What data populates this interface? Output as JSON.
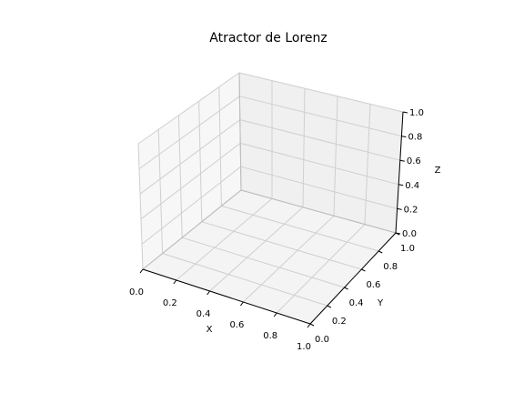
{
  "chart_data": {
    "type": "line",
    "title": "Atractor de Lorenz",
    "xlabel": "X",
    "ylabel": "Y",
    "zlabel": "Z",
    "xlim": [
      0.0,
      1.0
    ],
    "ylim": [
      0.0,
      1.0
    ],
    "zlim": [
      0.0,
      1.0
    ],
    "x_ticks": [
      "0.0",
      "0.2",
      "0.4",
      "0.6",
      "0.8",
      "1.0"
    ],
    "y_ticks": [
      "0.0",
      "0.2",
      "0.4",
      "0.6",
      "0.8",
      "1.0"
    ],
    "z_ticks": [
      "0.0",
      "0.2",
      "0.4",
      "0.6",
      "0.8",
      "1.0"
    ],
    "grid": true,
    "projection": "3d",
    "series": []
  }
}
